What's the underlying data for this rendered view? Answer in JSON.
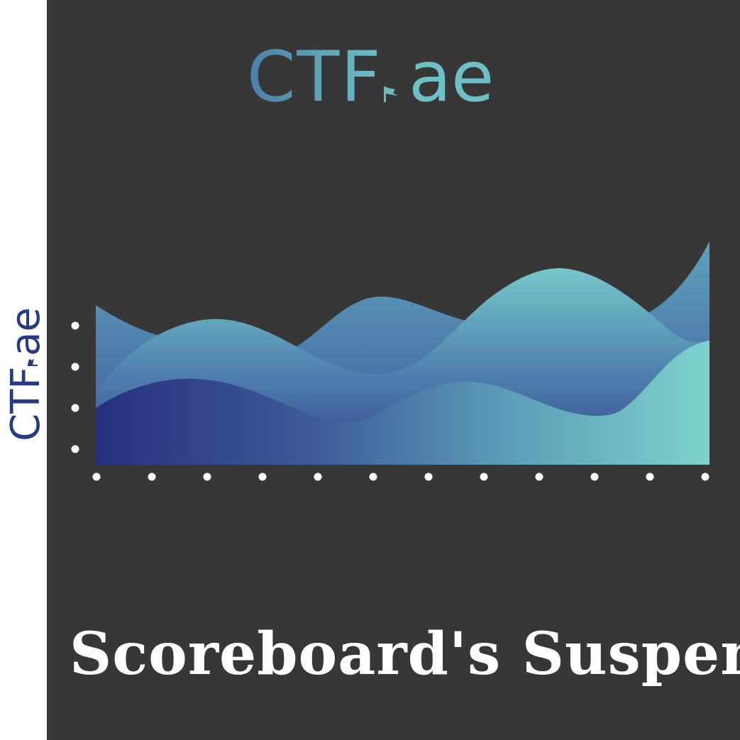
{
  "logo": {
    "part1": "CTF",
    "part2": "ae"
  },
  "sidebar_logo": {
    "part1": "CTF",
    "part2": "ae"
  },
  "title": "Scoreboard's Suspense",
  "colors": {
    "background": "#373737",
    "sidebar": "#ffffff",
    "logo_blue": "#4f87a8",
    "logo_teal": "#6ab8c2",
    "sidebar_logo": "#263a86",
    "wave_dark": "#28317f",
    "wave_teal": "#79d1cc",
    "dots": "#ffffff"
  }
}
